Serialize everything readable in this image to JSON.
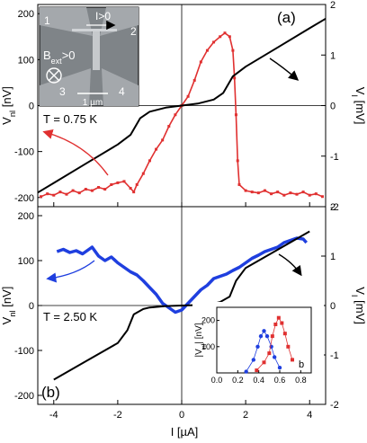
{
  "figure": {
    "xlabel": "I [µA]",
    "x_ticks": [
      "-4",
      "-2",
      "0",
      "2",
      "4"
    ]
  },
  "chart_data": [
    {
      "type": "line",
      "panel_label": "(a)",
      "annotation": "T = 0.75 K",
      "xlim": [
        -4.5,
        4.5
      ],
      "ylim": [
        -220,
        220
      ],
      "y2lim": [
        -2,
        2
      ],
      "ylabel": "V_nl [nV]",
      "y2label": "V_I [mV]",
      "y_ticks": [
        "-200",
        "-100",
        "0",
        "100",
        "200"
      ],
      "y2_ticks": [
        "-2",
        "-1",
        "0",
        "1",
        "2"
      ],
      "series": [
        {
          "name": "V_nl",
          "axis": "left",
          "color": "#e03030",
          "marker": "square",
          "x": [
            -4.4,
            -4.2,
            -4.0,
            -3.8,
            -3.6,
            -3.4,
            -3.2,
            -3.0,
            -2.8,
            -2.6,
            -2.4,
            -2.2,
            -2.0,
            -1.8,
            -1.6,
            -1.5,
            -1.4,
            -1.2,
            -1.0,
            -0.8,
            -0.6,
            -0.4,
            -0.2,
            0.0,
            0.2,
            0.4,
            0.6,
            0.8,
            1.0,
            1.2,
            1.35,
            1.5,
            1.6,
            1.65,
            1.7,
            1.75,
            1.8,
            2.0,
            2.2,
            2.4,
            2.6,
            2.8,
            3.0,
            3.2,
            3.4,
            3.6,
            3.8,
            4.0,
            4.2,
            4.4
          ],
          "y": [
            -198,
            -192,
            -195,
            -188,
            -193,
            -185,
            -190,
            -182,
            -185,
            -178,
            -182,
            -172,
            -168,
            -165,
            -180,
            -188,
            -172,
            -148,
            -120,
            -95,
            -75,
            -45,
            -20,
            0,
            20,
            55,
            95,
            120,
            138,
            150,
            158,
            150,
            120,
            60,
            -20,
            -120,
            -172,
            -185,
            -188,
            -190,
            -185,
            -192,
            -188,
            -195,
            -190,
            -193,
            -188,
            -195,
            -192,
            -198
          ]
        },
        {
          "name": "V_I",
          "axis": "right",
          "color": "#000000",
          "x": [
            -4.5,
            -4.0,
            -3.0,
            -2.0,
            -1.6,
            -1.3,
            -1.0,
            -0.5,
            0.0,
            0.5,
            1.0,
            1.3,
            1.6,
            2.0,
            3.0,
            4.0,
            4.5
          ],
          "y": [
            -1.72,
            -1.53,
            -1.15,
            -0.77,
            -0.58,
            -0.25,
            -0.12,
            -0.04,
            0.0,
            0.04,
            0.12,
            0.25,
            0.58,
            0.77,
            1.15,
            1.53,
            1.72
          ]
        }
      ],
      "inset_image": {
        "labels": [
          "1",
          "2",
          "3",
          "4"
        ],
        "current_label": "I>0",
        "field_label": "B",
        "field_subscript": "ext",
        "field_suffix": ">0",
        "scale_label": "1 µm"
      }
    },
    {
      "type": "line",
      "panel_label": "(b)",
      "annotation": "T = 2.50 K",
      "xlim": [
        -4.5,
        4.5
      ],
      "ylim": [
        -220,
        220
      ],
      "y2lim": [
        -2,
        2
      ],
      "ylabel": "V_nl [nV]",
      "y2label": "V_I [mV]",
      "y_ticks": [
        "-200",
        "-100",
        "0",
        "100",
        "200"
      ],
      "y2_ticks": [
        "-2",
        "-1",
        "0",
        "1",
        "2"
      ],
      "series": [
        {
          "name": "V_nl",
          "axis": "left",
          "color": "#1f3fdf",
          "x": [
            -3.9,
            -3.7,
            -3.5,
            -3.3,
            -3.1,
            -2.9,
            -2.8,
            -2.6,
            -2.4,
            -2.2,
            -2.0,
            -1.8,
            -1.6,
            -1.4,
            -1.2,
            -1.0,
            -0.8,
            -0.6,
            -0.4,
            -0.2,
            0.0,
            0.2,
            0.4,
            0.6,
            0.8,
            1.0,
            1.2,
            1.4,
            1.6,
            1.8,
            2.0,
            2.2,
            2.4,
            2.6,
            2.8,
            3.0,
            3.2,
            3.4,
            3.6,
            3.8,
            3.9
          ],
          "y": [
            120,
            125,
            118,
            122,
            115,
            125,
            130,
            110,
            100,
            108,
            95,
            85,
            75,
            68,
            55,
            40,
            25,
            5,
            -5,
            -15,
            -10,
            5,
            20,
            35,
            45,
            60,
            65,
            70,
            78,
            85,
            95,
            105,
            112,
            120,
            125,
            130,
            140,
            145,
            150,
            148,
            140
          ]
        },
        {
          "name": "V_I",
          "axis": "right",
          "color": "#000000",
          "x": [
            -4.0,
            -3.0,
            -2.0,
            -1.7,
            -1.5,
            -1.2,
            -1.0,
            -0.5,
            0.0,
            0.5,
            1.0,
            1.2,
            1.5,
            1.7,
            2.0,
            3.0,
            4.0
          ],
          "y": [
            -1.5,
            -1.13,
            -0.76,
            -0.5,
            -0.18,
            -0.07,
            -0.04,
            -0.01,
            0.0,
            0.01,
            0.04,
            0.07,
            0.18,
            0.5,
            0.76,
            1.13,
            1.5
          ]
        }
      ]
    },
    {
      "type": "scatter",
      "panel": "inset",
      "xlim": [
        0.0,
        0.9
      ],
      "ylim": [
        0,
        250
      ],
      "ylabel": "|V_nl| [nV]",
      "x_ticks": [
        "0.0",
        "0.2",
        "0.4",
        "0.6",
        "0.8"
      ],
      "y_ticks": [
        "100",
        "200"
      ],
      "annotation": "b",
      "series": [
        {
          "name": "blue",
          "color": "#1f3fdf",
          "x": [
            0.28,
            0.35,
            0.39,
            0.42,
            0.45,
            0.48,
            0.52,
            0.55,
            0.6
          ],
          "y": [
            5,
            50,
            100,
            140,
            160,
            140,
            100,
            60,
            20
          ]
        },
        {
          "name": "red",
          "color": "#e03030",
          "x": [
            0.38,
            0.45,
            0.5,
            0.53,
            0.56,
            0.59,
            0.62,
            0.65,
            0.68,
            0.72
          ],
          "y": [
            10,
            40,
            75,
            140,
            185,
            210,
            190,
            150,
            100,
            50
          ]
        }
      ]
    }
  ]
}
